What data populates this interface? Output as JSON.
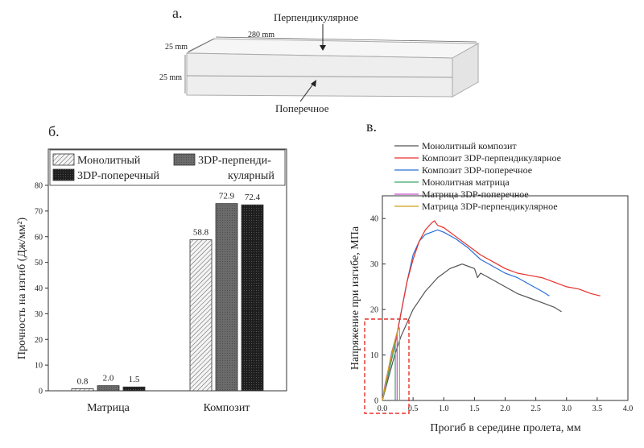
{
  "panels": {
    "a": {
      "label": "а.",
      "top_label": "Перпендикулярное",
      "bottom_label": "Поперечное",
      "dim_length": "280 mm",
      "dim_width": "25 mm",
      "dim_height": "25 mm"
    },
    "b": {
      "label": "б."
    },
    "c": {
      "label": "в."
    }
  },
  "chart_data": [
    {
      "type": "bar",
      "title": "",
      "ylabel": "Прочность на изгиб (Дж/мм²)",
      "ylim": [
        0,
        80
      ],
      "yticks": [
        "0",
        "10",
        "20",
        "30",
        "40",
        "50",
        "60",
        "70",
        "80"
      ],
      "categories": [
        "Матрица",
        "Композит"
      ],
      "legend": {
        "placement": "top"
      },
      "series": [
        {
          "name": "Монолитный",
          "values": [
            0.8,
            58.8
          ],
          "labels": [
            "0.8",
            "58.8"
          ],
          "color": "#f2f2f2",
          "pattern": "hatch"
        },
        {
          "name": "3DP-перпенди-кулярный",
          "legend_line1": "3DP-перпенди-",
          "legend_line2": "кулярный",
          "values": [
            2.0,
            72.9
          ],
          "labels": [
            "2.0",
            "72.9"
          ],
          "color": "#6b6b6b",
          "pattern": "dots"
        },
        {
          "name": "3DP-поперечный",
          "values": [
            1.5,
            72.4
          ],
          "labels": [
            "1.5",
            "72.4"
          ],
          "color": "#1e1e1e",
          "pattern": "dots"
        }
      ]
    },
    {
      "type": "line",
      "title": "",
      "xlabel": "Прогиб в середине пролета, мм",
      "ylabel": "Напряжение при изгибе, МПа",
      "xlim": [
        0,
        4.0
      ],
      "ylim": [
        0,
        45
      ],
      "xticks": [
        "0.0",
        "0.5",
        "1.0",
        "1.5",
        "2.0",
        "2.5",
        "3.0",
        "3.5",
        "4.0"
      ],
      "yticks": [
        "0",
        "10",
        "20",
        "30",
        "40"
      ],
      "legend": {
        "placement": "top"
      },
      "series": [
        {
          "name": "Монолитный композит",
          "color": "#555555",
          "x": [
            0,
            0.1,
            0.2,
            0.3,
            0.4,
            0.5,
            0.6,
            0.7,
            0.8,
            0.9,
            1.0,
            1.1,
            1.2,
            1.3,
            1.4,
            1.5,
            1.55,
            1.6,
            1.8,
            2.0,
            2.2,
            2.4,
            2.6,
            2.8,
            2.92
          ],
          "y": [
            0,
            5,
            10,
            14,
            17,
            20,
            22,
            24,
            25.5,
            27,
            28,
            29,
            29.5,
            30,
            29.5,
            29,
            27,
            28,
            26.5,
            25,
            23.5,
            22.5,
            21.5,
            20.5,
            19.5
          ]
        },
        {
          "name": "Композит 3DP-перпендикулярное",
          "color": "#e8302a",
          "x": [
            0,
            0.1,
            0.2,
            0.3,
            0.4,
            0.5,
            0.6,
            0.7,
            0.8,
            0.85,
            0.9,
            1.0,
            1.2,
            1.4,
            1.6,
            1.8,
            2.0,
            2.2,
            2.4,
            2.6,
            2.8,
            3.0,
            3.2,
            3.4,
            3.55
          ],
          "y": [
            0,
            6,
            12,
            19,
            26,
            31,
            35,
            37.5,
            39,
            39.5,
            38.5,
            38,
            36,
            34,
            32,
            30.5,
            29,
            28,
            27.5,
            27,
            26,
            25,
            24.5,
            23.5,
            23
          ]
        },
        {
          "name": "Композит 3DP-поперечное",
          "color": "#2a6fd6",
          "x": [
            0,
            0.1,
            0.2,
            0.3,
            0.4,
            0.5,
            0.6,
            0.7,
            0.8,
            0.9,
            1.0,
            1.2,
            1.4,
            1.6,
            1.8,
            2.0,
            2.2,
            2.4,
            2.6,
            2.72
          ],
          "y": [
            0,
            6,
            12,
            19,
            26,
            32,
            35,
            36.5,
            37,
            37.5,
            37,
            35.5,
            33.5,
            31,
            29.5,
            28,
            27,
            25.5,
            24,
            23
          ]
        },
        {
          "name": "Монолитная матрица",
          "color": "#3aa66b",
          "x": [
            0,
            0.05,
            0.1,
            0.15,
            0.2,
            0.21,
            0.21
          ],
          "y": [
            0,
            3,
            6,
            9,
            12,
            13,
            0
          ]
        },
        {
          "name": "Матрица 3DP-поперечное",
          "color": "#c84fc8",
          "x": [
            0,
            0.05,
            0.1,
            0.15,
            0.2,
            0.24,
            0.24
          ],
          "y": [
            0,
            4,
            7,
            10.5,
            13,
            15,
            0
          ]
        },
        {
          "name": "Матрица 3DP-перпендикулярное",
          "color": "#d4a017",
          "x": [
            0,
            0.05,
            0.1,
            0.15,
            0.2,
            0.25,
            0.28,
            0.28
          ],
          "y": [
            0,
            3.5,
            7,
            10,
            13,
            15.5,
            16,
            0
          ]
        }
      ]
    }
  ]
}
